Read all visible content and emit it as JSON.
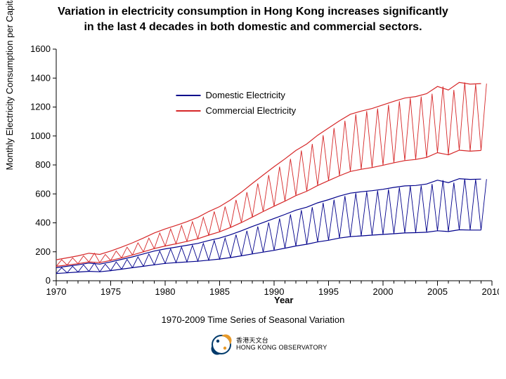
{
  "title_line1": "Variation in electricity consumption in Hong Kong increases significantly",
  "title_line2": "in the last 4 decades in both domestic and commercial sectors.",
  "ylabel": "Monthly Electricity Consumption per Capita (MJ)",
  "xlabel": "Year",
  "caption": "1970-2009 Time Series of Seasonal Variation",
  "logo_line1": "香港天文台",
  "logo_line2": "HONG KONG OBSERVATORY",
  "chart": {
    "type": "line",
    "background_color": "#ffffff",
    "axis_color": "#000000",
    "axis_line_width": 1,
    "tick_font_size": 13,
    "tick_font_color": "#000000",
    "xlim": [
      1970,
      2010
    ],
    "ylim": [
      0,
      1600
    ],
    "ytick_step": 200,
    "xticks": [
      1970,
      1975,
      1980,
      1985,
      1990,
      1995,
      2000,
      2005,
      2010
    ],
    "minor_xtick_step": 1,
    "legend": {
      "x_year": 1981,
      "y_val": 1280,
      "font_size": 13,
      "items": [
        {
          "label": "Domestic Electricity",
          "color": "#00008b"
        },
        {
          "label": "Commercial Electricity",
          "color": "#d62728"
        }
      ]
    },
    "series": [
      {
        "name": "Domestic Electricity (low)",
        "color": "#00008b",
        "line_width": 1.2,
        "points": [
          [
            1970,
            50
          ],
          [
            1971,
            55
          ],
          [
            1972,
            60
          ],
          [
            1973,
            65
          ],
          [
            1974,
            62
          ],
          [
            1975,
            70
          ],
          [
            1976,
            80
          ],
          [
            1977,
            90
          ],
          [
            1978,
            100
          ],
          [
            1979,
            110
          ],
          [
            1980,
            120
          ],
          [
            1981,
            125
          ],
          [
            1982,
            130
          ],
          [
            1983,
            135
          ],
          [
            1984,
            142
          ],
          [
            1985,
            150
          ],
          [
            1986,
            160
          ],
          [
            1987,
            172
          ],
          [
            1988,
            185
          ],
          [
            1989,
            198
          ],
          [
            1990,
            210
          ],
          [
            1991,
            225
          ],
          [
            1992,
            240
          ],
          [
            1993,
            252
          ],
          [
            1994,
            268
          ],
          [
            1995,
            280
          ],
          [
            1996,
            295
          ],
          [
            1997,
            305
          ],
          [
            1998,
            310
          ],
          [
            1999,
            315
          ],
          [
            2000,
            320
          ],
          [
            2001,
            325
          ],
          [
            2002,
            330
          ],
          [
            2003,
            332
          ],
          [
            2004,
            335
          ],
          [
            2005,
            345
          ],
          [
            2006,
            340
          ],
          [
            2007,
            352
          ],
          [
            2008,
            350
          ],
          [
            2009,
            350
          ]
        ]
      },
      {
        "name": "Domestic Electricity (high)",
        "color": "#00008b",
        "line_width": 1.2,
        "points": [
          [
            1970,
            90
          ],
          [
            1971,
            100
          ],
          [
            1972,
            110
          ],
          [
            1973,
            122
          ],
          [
            1974,
            115
          ],
          [
            1975,
            130
          ],
          [
            1976,
            148
          ],
          [
            1977,
            165
          ],
          [
            1978,
            185
          ],
          [
            1979,
            205
          ],
          [
            1980,
            220
          ],
          [
            1981,
            232
          ],
          [
            1982,
            245
          ],
          [
            1983,
            258
          ],
          [
            1984,
            278
          ],
          [
            1985,
            295
          ],
          [
            1986,
            318
          ],
          [
            1987,
            345
          ],
          [
            1988,
            375
          ],
          [
            1989,
            402
          ],
          [
            1990,
            430
          ],
          [
            1991,
            458
          ],
          [
            1992,
            488
          ],
          [
            1993,
            508
          ],
          [
            1994,
            538
          ],
          [
            1995,
            560
          ],
          [
            1996,
            585
          ],
          [
            1997,
            605
          ],
          [
            1998,
            615
          ],
          [
            1999,
            622
          ],
          [
            2000,
            632
          ],
          [
            2001,
            645
          ],
          [
            2002,
            655
          ],
          [
            2003,
            658
          ],
          [
            2004,
            668
          ],
          [
            2005,
            695
          ],
          [
            2006,
            678
          ],
          [
            2007,
            705
          ],
          [
            2008,
            700
          ],
          [
            2009,
            702
          ]
        ]
      },
      {
        "name": "Commercial Electricity (low)",
        "color": "#d62728",
        "line_width": 1.2,
        "points": [
          [
            1970,
            100
          ],
          [
            1971,
            108
          ],
          [
            1972,
            118
          ],
          [
            1973,
            130
          ],
          [
            1974,
            125
          ],
          [
            1975,
            140
          ],
          [
            1976,
            158
          ],
          [
            1977,
            178
          ],
          [
            1978,
            200
          ],
          [
            1979,
            222
          ],
          [
            1980,
            240
          ],
          [
            1981,
            255
          ],
          [
            1982,
            272
          ],
          [
            1983,
            290
          ],
          [
            1984,
            315
          ],
          [
            1985,
            338
          ],
          [
            1986,
            368
          ],
          [
            1987,
            402
          ],
          [
            1988,
            440
          ],
          [
            1989,
            478
          ],
          [
            1990,
            515
          ],
          [
            1991,
            550
          ],
          [
            1992,
            588
          ],
          [
            1993,
            618
          ],
          [
            1994,
            658
          ],
          [
            1995,
            692
          ],
          [
            1996,
            725
          ],
          [
            1997,
            755
          ],
          [
            1998,
            770
          ],
          [
            1999,
            782
          ],
          [
            2000,
            798
          ],
          [
            2001,
            815
          ],
          [
            2002,
            830
          ],
          [
            2003,
            838
          ],
          [
            2004,
            852
          ],
          [
            2005,
            885
          ],
          [
            2006,
            870
          ],
          [
            2007,
            902
          ],
          [
            2008,
            895
          ],
          [
            2009,
            900
          ]
        ]
      },
      {
        "name": "Commercial Electricity (high)",
        "color": "#d62728",
        "line_width": 1.2,
        "points": [
          [
            1970,
            145
          ],
          [
            1971,
            158
          ],
          [
            1972,
            172
          ],
          [
            1973,
            190
          ],
          [
            1974,
            182
          ],
          [
            1975,
            205
          ],
          [
            1976,
            232
          ],
          [
            1977,
            262
          ],
          [
            1978,
            295
          ],
          [
            1979,
            330
          ],
          [
            1980,
            358
          ],
          [
            1981,
            382
          ],
          [
            1982,
            408
          ],
          [
            1983,
            438
          ],
          [
            1984,
            478
          ],
          [
            1985,
            512
          ],
          [
            1986,
            558
          ],
          [
            1987,
            612
          ],
          [
            1988,
            672
          ],
          [
            1989,
            730
          ],
          [
            1990,
            788
          ],
          [
            1991,
            842
          ],
          [
            1992,
            900
          ],
          [
            1993,
            945
          ],
          [
            1994,
            1005
          ],
          [
            1995,
            1055
          ],
          [
            1996,
            1105
          ],
          [
            1997,
            1150
          ],
          [
            1998,
            1172
          ],
          [
            1999,
            1190
          ],
          [
            2000,
            1215
          ],
          [
            2001,
            1240
          ],
          [
            2002,
            1262
          ],
          [
            2003,
            1272
          ],
          [
            2004,
            1292
          ],
          [
            2005,
            1342
          ],
          [
            2006,
            1318
          ],
          [
            2007,
            1370
          ],
          [
            2008,
            1358
          ],
          [
            2009,
            1362
          ]
        ]
      }
    ]
  }
}
